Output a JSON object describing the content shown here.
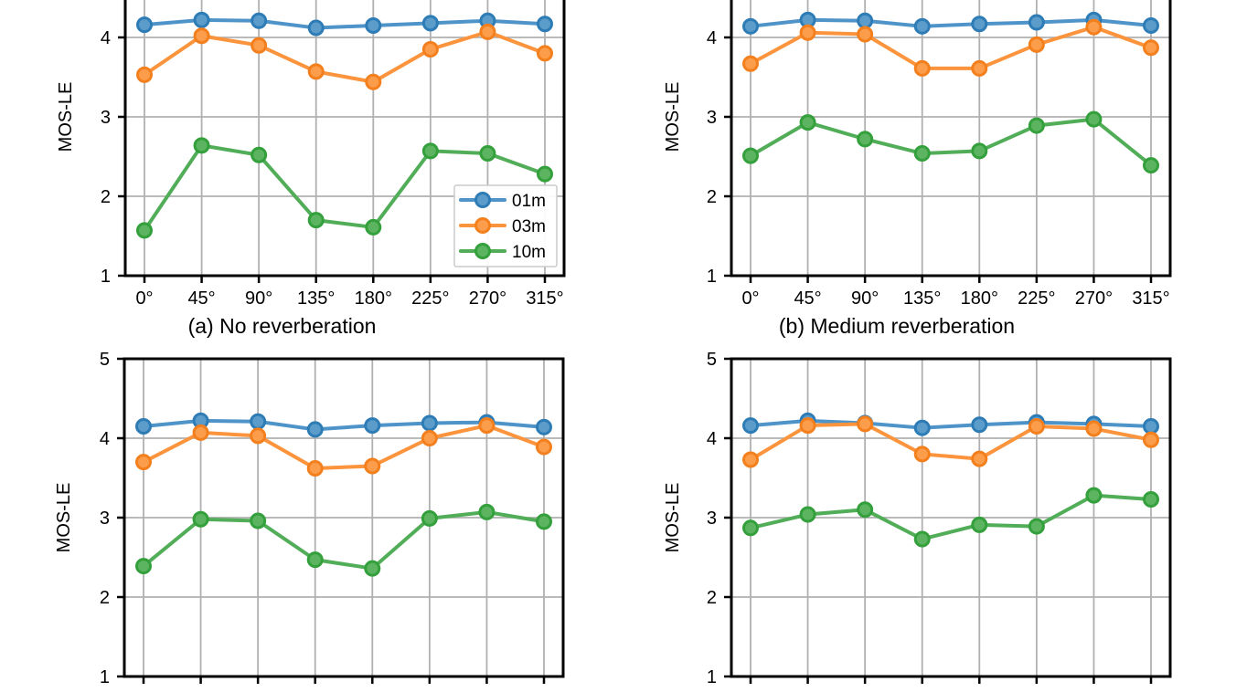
{
  "figure": {
    "background": "#ffffff",
    "ylabel": "MOS-LE",
    "x_tick_labels": [
      "0°",
      "45°",
      "90°",
      "135°",
      "180°",
      "225°",
      "270°",
      "315°"
    ],
    "grid_color": "#b0b0b0",
    "axis_color": "#000000",
    "tick_label_color": "#000000",
    "series_colors": {
      "01m": {
        "line": "#4f94c8",
        "marker_fill": "#5b9cca",
        "marker_edge": "#2e7cb6"
      },
      "03m": {
        "line": "#fb943c",
        "marker_fill": "#fb9d4b",
        "marker_edge": "#f47f1d"
      },
      "10m": {
        "line": "#51ad57",
        "marker_fill": "#5cb461",
        "marker_edge": "#33a03c"
      }
    },
    "legend": {
      "entries": [
        "01m",
        "03m",
        "10m"
      ],
      "location": "lower-right of chart (a)"
    }
  },
  "chart_data": [
    {
      "id": "a",
      "type": "line",
      "title": "(a) No reverberation",
      "ylabel": "MOS-LE",
      "ylim": [
        1,
        5
      ],
      "y_tick_labels": [
        "4",
        "3",
        "2",
        "1"
      ],
      "x": [
        "0°",
        "45°",
        "90°",
        "135°",
        "180°",
        "225°",
        "270°",
        "315°"
      ],
      "x_tick_labels_visible": true,
      "legend_visible": true,
      "series": [
        {
          "name": "01m",
          "values": [
            4.16,
            4.22,
            4.21,
            4.12,
            4.15,
            4.18,
            4.21,
            4.17
          ]
        },
        {
          "name": "03m",
          "values": [
            3.53,
            4.02,
            3.9,
            3.57,
            3.44,
            3.85,
            4.07,
            3.8
          ]
        },
        {
          "name": "10m",
          "values": [
            1.57,
            2.64,
            2.52,
            1.7,
            1.61,
            2.57,
            2.54,
            2.28
          ]
        }
      ]
    },
    {
      "id": "b",
      "type": "line",
      "title": "(b) Medium reverberation",
      "ylabel": "MOS-LE",
      "ylim": [
        1,
        5
      ],
      "y_tick_labels": [
        "4",
        "3",
        "2",
        "1"
      ],
      "x": [
        "0°",
        "45°",
        "90°",
        "135°",
        "180°",
        "225°",
        "270°",
        "315°"
      ],
      "x_tick_labels_visible": true,
      "legend_visible": false,
      "series": [
        {
          "name": "01m",
          "values": [
            4.14,
            4.22,
            4.21,
            4.14,
            4.17,
            4.19,
            4.22,
            4.15
          ]
        },
        {
          "name": "03m",
          "values": [
            3.67,
            4.06,
            4.04,
            3.61,
            3.61,
            3.91,
            4.13,
            3.87
          ]
        },
        {
          "name": "10m",
          "values": [
            2.51,
            2.93,
            2.72,
            2.54,
            2.57,
            2.89,
            2.97,
            2.39
          ]
        }
      ]
    },
    {
      "id": "c",
      "type": "line",
      "ylabel": "MOS-LE",
      "ylim": [
        1,
        5
      ],
      "y_tick_labels": [
        "5",
        "4",
        "3",
        "2",
        "1"
      ],
      "x_tick_labels_visible": false,
      "legend_visible": false,
      "series": [
        {
          "name": "01m",
          "values": [
            4.15,
            4.22,
            4.21,
            4.11,
            4.16,
            4.19,
            4.2,
            4.14
          ]
        },
        {
          "name": "03m",
          "values": [
            3.7,
            4.07,
            4.03,
            3.62,
            3.65,
            4.0,
            4.16,
            3.89
          ]
        },
        {
          "name": "10m",
          "values": [
            2.39,
            2.98,
            2.96,
            2.47,
            2.36,
            2.99,
            3.07,
            2.95
          ]
        }
      ]
    },
    {
      "id": "d",
      "type": "line",
      "ylabel": "MOS-LE",
      "ylim": [
        1,
        5
      ],
      "y_tick_labels": [
        "5",
        "4",
        "3",
        "2",
        "1"
      ],
      "x_tick_labels_visible": false,
      "legend_visible": false,
      "series": [
        {
          "name": "01m",
          "values": [
            4.16,
            4.22,
            4.19,
            4.13,
            4.17,
            4.2,
            4.18,
            4.15
          ]
        },
        {
          "name": "03m",
          "values": [
            3.73,
            4.16,
            4.18,
            3.8,
            3.74,
            4.15,
            4.12,
            3.98
          ]
        },
        {
          "name": "10m",
          "values": [
            2.87,
            3.04,
            3.1,
            2.73,
            2.91,
            2.89,
            3.28,
            3.23
          ]
        }
      ]
    }
  ]
}
